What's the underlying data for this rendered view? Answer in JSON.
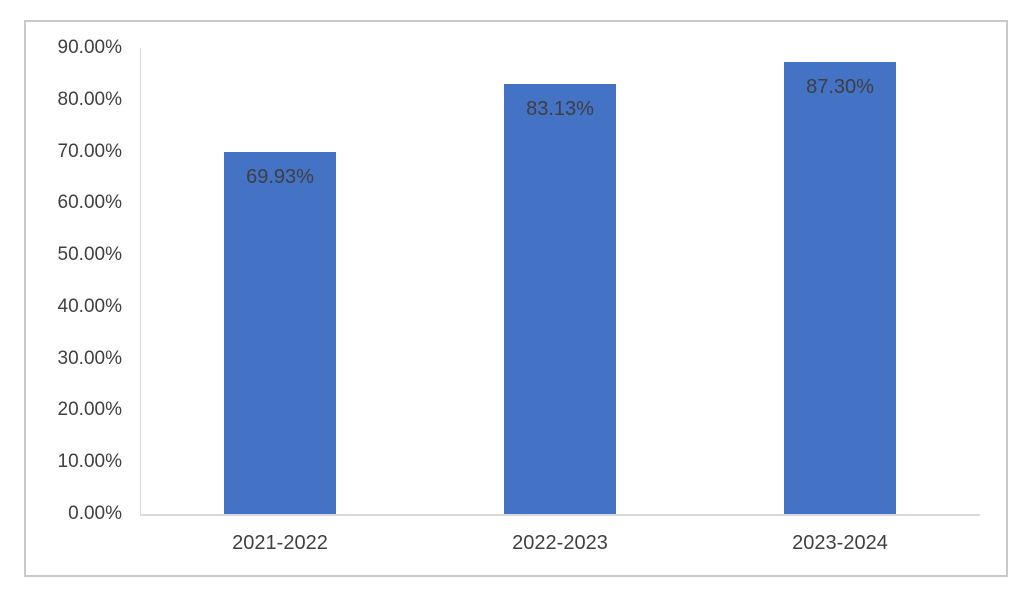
{
  "chart_data": {
    "type": "bar",
    "title": "",
    "xlabel": "",
    "ylabel": "",
    "categories": [
      "2021-2022",
      "2022-2023",
      "2023-2024"
    ],
    "values": [
      69.93,
      83.13,
      87.3
    ],
    "data_labels": [
      "69.93%",
      "83.13%",
      "87.30%"
    ],
    "y_ticks": [
      "90.00%",
      "80.00%",
      "70.00%",
      "60.00%",
      "50.00%",
      "40.00%",
      "30.00%",
      "20.00%",
      "10.00%",
      "0.00%"
    ],
    "ylim": [
      0,
      90
    ],
    "grid": false,
    "legend": false,
    "data_label_position": "inside-end",
    "colors": {
      "bar_fill": "#4472C4",
      "axis_text": "#404040",
      "data_label_text": "#3f3f3f",
      "axis_line": "#d9d9d9",
      "frame_border": "#c9c9c9",
      "background": "#ffffff"
    }
  }
}
